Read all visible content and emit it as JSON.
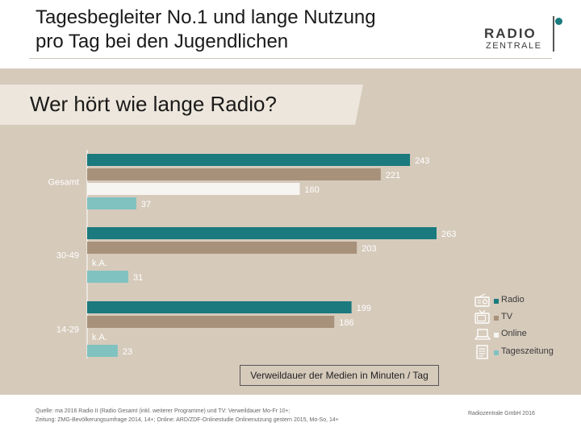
{
  "header": {
    "title_line1": "Tagesbegleiter No.1 und lange Nutzung",
    "title_line2": "pro Tag bei den Jugendlichen"
  },
  "logo": {
    "line1": "RADIO",
    "line2": "ZENTRALE"
  },
  "subtitle": "Wer hört wie lange Radio?",
  "colors": {
    "radio": "#1a7a7e",
    "tv": "#a8917a",
    "online": "#f7f5f2",
    "tageszeitung": "#80c2c0",
    "panel": "#d6cabb"
  },
  "chart_data": {
    "type": "bar",
    "orientation": "horizontal",
    "title": "Wer hört wie lange Radio?",
    "xlabel": "Verweildauer der Medien in Minuten / Tag",
    "ylabel": "",
    "xlim": [
      0,
      280
    ],
    "grid": false,
    "legend_position": "right",
    "categories": [
      "Gesamt",
      "30-49",
      "14-29"
    ],
    "series": [
      {
        "name": "Radio",
        "values": [
          243,
          263,
          199
        ],
        "labels": [
          "243",
          "263",
          "199"
        ]
      },
      {
        "name": "TV",
        "values": [
          221,
          203,
          186
        ],
        "labels": [
          "221",
          "203",
          "186"
        ]
      },
      {
        "name": "Online",
        "values": [
          160,
          null,
          null
        ],
        "labels": [
          "160",
          "k.A.",
          "k.A."
        ]
      },
      {
        "name": "Tageszeitung",
        "values": [
          37,
          31,
          23
        ],
        "labels": [
          "37",
          "31",
          "23"
        ]
      }
    ]
  },
  "legend": {
    "items": [
      {
        "label": "Radio",
        "icon": "radio-icon"
      },
      {
        "label": "TV",
        "icon": "tv-icon"
      },
      {
        "label": "Online",
        "icon": "laptop-icon"
      },
      {
        "label": "Tageszeitung",
        "icon": "newspaper-icon"
      }
    ]
  },
  "footer": {
    "source_line1": "Quelle: ma 2016 Radio II (Radio Gesamt (inkl. weiterer Programme) und TV: Verweildauer Mo-Fr 10+;",
    "source_line2": "Zeitung: ZMG-Bevölkerungsumfrage 2014, 14+; Online: ARD/ZDF-Onlinestudie Onlinenutzung gestern 2015, Mo-So, 14+",
    "copyright": "Radiozentrale GmbH 2016"
  }
}
